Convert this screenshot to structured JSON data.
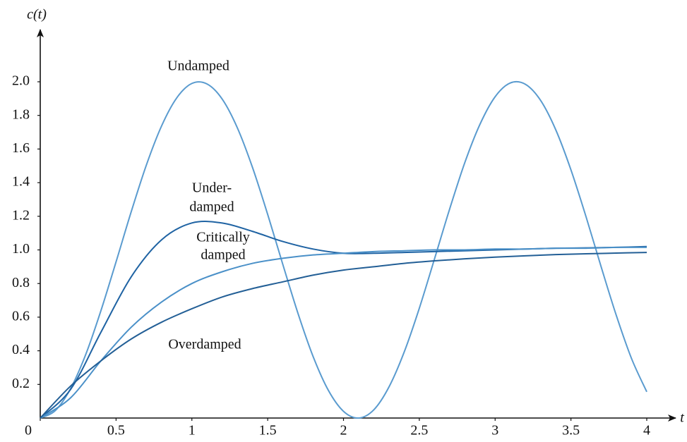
{
  "chart_data": {
    "type": "line",
    "y_label": "c(t)",
    "x_label": "t",
    "xlim": [
      0,
      4.2
    ],
    "ylim": [
      0,
      2.3
    ],
    "xticks": [
      0,
      0.5,
      1,
      1.5,
      2,
      2.5,
      3,
      3.5,
      4
    ],
    "yticks": [
      0.2,
      0.4,
      0.6,
      0.8,
      {
        "value": 1,
        "label": "1.0"
      },
      1.2,
      1.4,
      1.6,
      1.8,
      {
        "value": 2,
        "label": "2.0"
      }
    ],
    "series": [
      {
        "label": [
          "Undamped"
        ],
        "color": "#5a9bcf",
        "x": [
          0,
          0.1,
          0.2,
          0.3,
          0.4,
          0.5,
          0.6,
          0.7,
          0.8,
          0.9,
          1,
          1.1,
          1.2,
          1.3,
          1.4,
          1.5,
          1.6,
          1.7,
          1.8,
          1.9,
          2,
          2.1,
          2.2,
          2.3,
          2.4,
          2.5,
          2.6,
          2.7,
          2.8,
          2.9,
          3,
          3.1,
          3.2,
          3.3,
          3.4,
          3.5,
          3.6,
          3.7,
          3.8,
          3.9,
          4
        ],
        "values": [
          0,
          0.045,
          0.175,
          0.378,
          0.638,
          0.929,
          1.227,
          1.505,
          1.737,
          1.904,
          1.99,
          1.987,
          1.897,
          1.726,
          1.49,
          1.211,
          0.913,
          0.622,
          0.365,
          0.165,
          0.04,
          0,
          0.049,
          0.185,
          0.392,
          0.653,
          0.946,
          1.243,
          1.519,
          1.747,
          1.911,
          1.993,
          1.985,
          1.889,
          1.714,
          1.476,
          1.196,
          0.897,
          0.608,
          0.353,
          0.156
        ]
      },
      {
        "label": [
          "Under-",
          "damped"
        ],
        "color": "#1f63a3",
        "x": [
          0,
          0.2,
          0.4,
          0.6,
          0.8,
          1,
          1.2,
          1.4,
          1.6,
          1.8,
          2,
          2.2,
          2.4,
          2.6,
          2.8,
          3,
          3.2,
          3.4,
          3.6,
          3.8,
          4
        ],
        "values": [
          0,
          0.17,
          0.51,
          0.84,
          1.06,
          1.16,
          1.16,
          1.11,
          1.05,
          1.005,
          0.98,
          0.98,
          0.985,
          0.99,
          0.995,
          1.0,
          1.005,
          1.01,
          1.012,
          1.015,
          1.02
        ]
      },
      {
        "label": [
          "Critically",
          "damped"
        ],
        "color": "#4a90c8",
        "x": [
          0,
          0.2,
          0.4,
          0.6,
          0.8,
          1,
          1.2,
          1.4,
          1.6,
          1.8,
          2,
          2.2,
          2.4,
          2.6,
          2.8,
          3,
          3.2,
          3.4,
          3.6,
          3.8,
          4
        ],
        "values": [
          0,
          0.12,
          0.34,
          0.54,
          0.69,
          0.8,
          0.87,
          0.92,
          0.95,
          0.97,
          0.98,
          0.99,
          0.995,
          1.0,
          1.0,
          1.005,
          1.005,
          1.01,
          1.01,
          1.015,
          1.015
        ]
      },
      {
        "label": [
          "Overdamped"
        ],
        "color": "#235f96",
        "x": [
          0,
          0.2,
          0.4,
          0.6,
          0.8,
          1,
          1.2,
          1.4,
          1.6,
          1.8,
          2,
          2.2,
          2.4,
          2.6,
          2.8,
          3,
          3.2,
          3.4,
          3.6,
          3.8,
          4
        ],
        "values": [
          0,
          0.19,
          0.34,
          0.47,
          0.57,
          0.65,
          0.72,
          0.77,
          0.81,
          0.85,
          0.88,
          0.9,
          0.92,
          0.935,
          0.947,
          0.957,
          0.965,
          0.972,
          0.977,
          0.981,
          0.985
        ]
      }
    ]
  }
}
